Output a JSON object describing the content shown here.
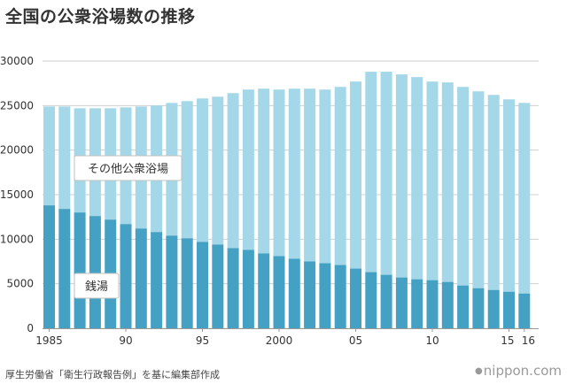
{
  "title": "全国の公衆浴場数の推移",
  "source": "厚生労働省「衛生行政報告例」を基に編集部作成",
  "brand": "nippon.com",
  "colors": {
    "public_bath": "#a4d8e9",
    "sento": "#45a1c4",
    "grid": "#cfcfcf",
    "axis": "#999999",
    "label": "#333333"
  },
  "chart_data": {
    "type": "bar",
    "stacked": true,
    "title": "全国の公衆浴場数の推移",
    "ylim": [
      0,
      30000
    ],
    "yticks": [
      0,
      5000,
      10000,
      15000,
      20000,
      25000,
      30000
    ],
    "categories": [
      1985,
      1986,
      1987,
      1988,
      1989,
      1990,
      1991,
      1992,
      1993,
      1994,
      1995,
      1996,
      1997,
      1998,
      1999,
      2000,
      2001,
      2002,
      2003,
      2004,
      2005,
      2006,
      2007,
      2008,
      2009,
      2010,
      2011,
      2012,
      2013,
      2014,
      2015,
      2016
    ],
    "xtick_labels": [
      {
        "index": 0,
        "label": "1985"
      },
      {
        "index": 5,
        "label": "90"
      },
      {
        "index": 10,
        "label": "95"
      },
      {
        "index": 15,
        "label": "2000"
      },
      {
        "index": 20,
        "label": "05"
      },
      {
        "index": 25,
        "label": "10"
      },
      {
        "index": 30,
        "label": "15"
      },
      {
        "index": 31,
        "label": "16"
      }
    ],
    "series": [
      {
        "name": "銭湯",
        "key": "sento",
        "values": [
          13800,
          13400,
          13000,
          12600,
          12200,
          11700,
          11200,
          10800,
          10400,
          10100,
          9700,
          9400,
          9000,
          8800,
          8400,
          8100,
          7800,
          7500,
          7300,
          7100,
          6700,
          6300,
          6000,
          5700,
          5500,
          5400,
          5200,
          4800,
          4500,
          4300,
          4100,
          3900
        ]
      },
      {
        "name": "その他公衆浴場",
        "key": "public_bath",
        "values": [
          11100,
          11500,
          11700,
          12100,
          12500,
          13100,
          13700,
          14200,
          14900,
          15400,
          16100,
          16600,
          17400,
          18000,
          18500,
          18700,
          19100,
          19400,
          19500,
          20000,
          21000,
          22500,
          22800,
          22800,
          22700,
          22300,
          22400,
          22300,
          22100,
          21900,
          21600,
          21400
        ]
      }
    ],
    "legend_labels": {
      "other": "その他公衆浴場",
      "sento": "銭湯"
    }
  }
}
